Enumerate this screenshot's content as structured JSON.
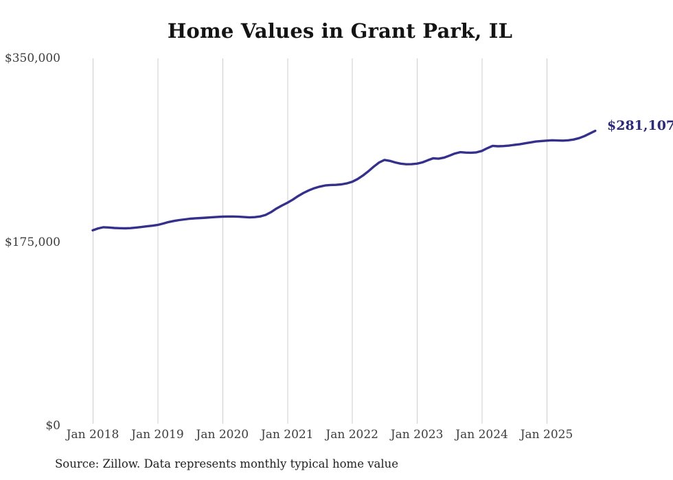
{
  "title": "Home Values in Grant Park, IL",
  "source_note": "Source: Zillow. Data represents monthly typical home value",
  "colors": {
    "line": "#34308c",
    "end_label": "#2d2a78",
    "gridline": "#cccccc",
    "title_text": "#141414",
    "tick_text": "#3d3d3d"
  },
  "chart_data": {
    "type": "line",
    "title": "Home Values in Grant Park, IL",
    "series_name": "Typical home value",
    "frequency": "monthly",
    "start_month": "2018-01",
    "end_month": "2025-10",
    "ylim": [
      0,
      350000
    ],
    "y_ticks": [
      0,
      175000,
      350000
    ],
    "y_tick_labels": [
      "$0",
      "$175,000",
      "$350,000"
    ],
    "x_tick_labels": [
      "Jan 2018",
      "Jan 2019",
      "Jan 2020",
      "Jan 2021",
      "Jan 2022",
      "Jan 2023",
      "Jan 2024",
      "Jan 2025"
    ],
    "grid": "vertical-only",
    "legend": "none",
    "end_value": 281107,
    "end_value_label": "$281,107",
    "values": [
      186500,
      188300,
      189400,
      189200,
      188700,
      188500,
      188400,
      188600,
      189100,
      189600,
      190300,
      190900,
      191600,
      192900,
      194300,
      195400,
      196200,
      196900,
      197500,
      197900,
      198200,
      198500,
      198900,
      199200,
      199500,
      199600,
      199600,
      199400,
      199100,
      198800,
      199000,
      199700,
      201100,
      203800,
      207200,
      210000,
      212600,
      215600,
      219000,
      222000,
      224500,
      226500,
      228000,
      229100,
      229600,
      229700,
      230200,
      231100,
      232600,
      235200,
      238600,
      242600,
      247000,
      251000,
      253400,
      252500,
      251000,
      249900,
      249300,
      249400,
      249900,
      251100,
      253100,
      255000,
      254600,
      255600,
      257500,
      259500,
      260800,
      260400,
      260300,
      260600,
      262000,
      264500,
      266800,
      266400,
      266600,
      267000,
      267700,
      268300,
      269200,
      270100,
      270900,
      271400,
      271800,
      272100,
      271900,
      271800,
      272100,
      272800,
      274100,
      276100,
      278600,
      281107
    ]
  }
}
